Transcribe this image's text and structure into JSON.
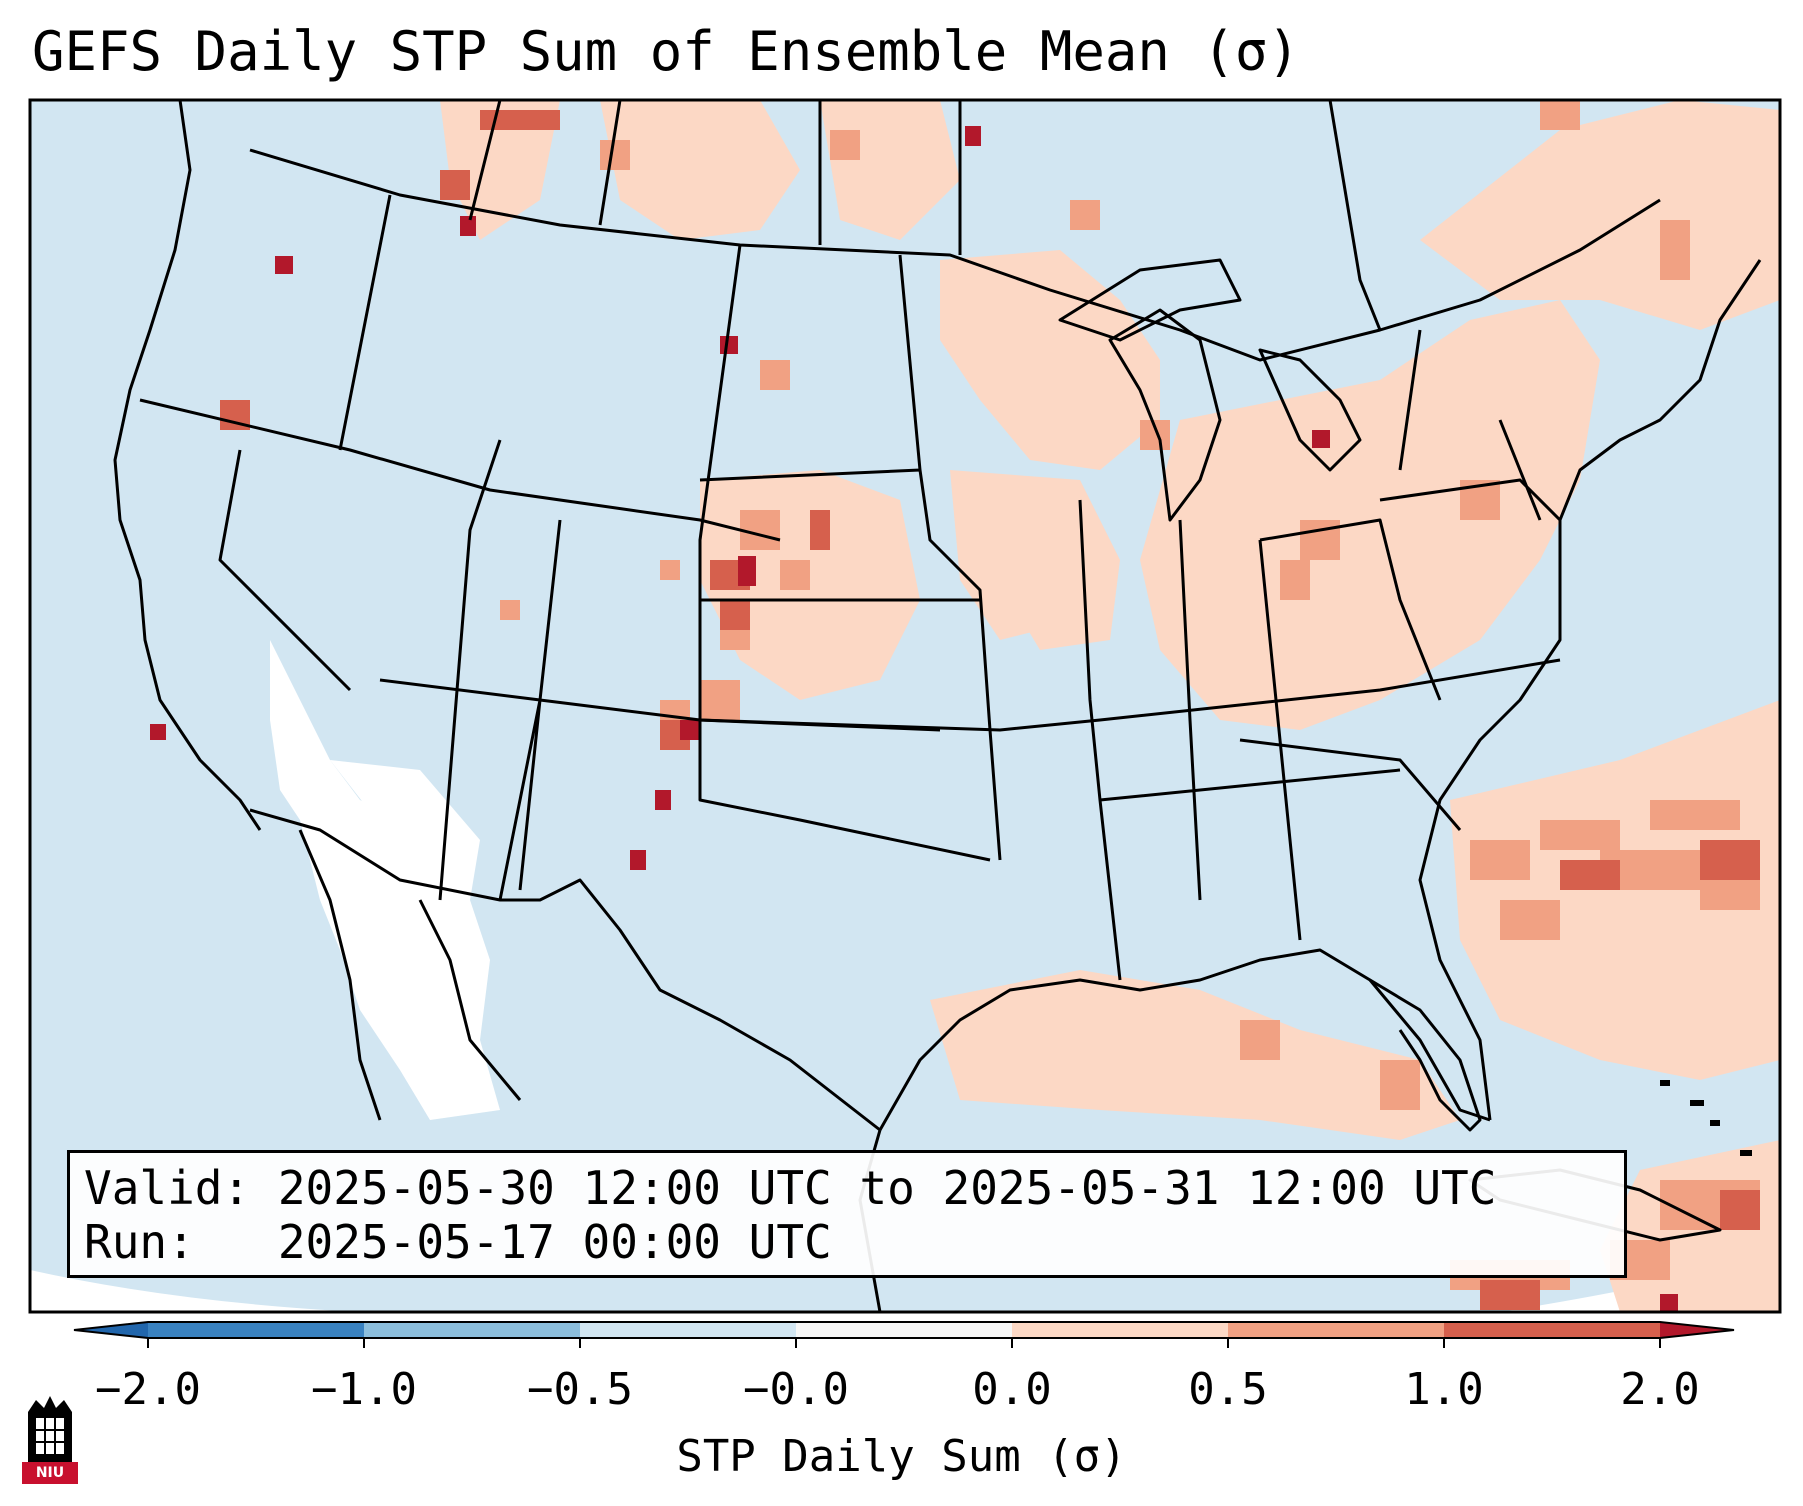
{
  "title": "GEFS Daily STP Sum of Ensemble Mean (σ)",
  "info": {
    "valid_line": "Valid: 2025-05-30 12:00 UTC to 2025-05-31 12:00 UTC",
    "run_line": "Run:   2025-05-17 00:00 UTC"
  },
  "colorbar": {
    "label": "STP Daily Sum (σ)",
    "ticks": [
      "−2.0",
      "−1.0",
      "−0.5",
      "−0.0",
      "0.0",
      "0.5",
      "1.0",
      "2.0"
    ],
    "bins": [
      {
        "color": "#3a82c0"
      },
      {
        "color": "#8cbedc"
      },
      {
        "color": "#d2e6f2"
      },
      {
        "color": "#f7f7f7"
      },
      {
        "color": "#fcd8c5"
      },
      {
        "color": "#f1a183"
      },
      {
        "color": "#d6604d"
      }
    ],
    "under_color": "#2166ac",
    "over_color": "#b2182b"
  },
  "colors": {
    "background": "#d2e6f2",
    "white_area": "#ffffff",
    "light_red": "#fcd8c5",
    "medium_red": "#f1a183",
    "dark_red": "#d6604d",
    "darkest_red": "#b2182b",
    "lines": "#000000"
  },
  "logo": {
    "text": "NIU",
    "icon": "niu-tower-icon"
  }
}
